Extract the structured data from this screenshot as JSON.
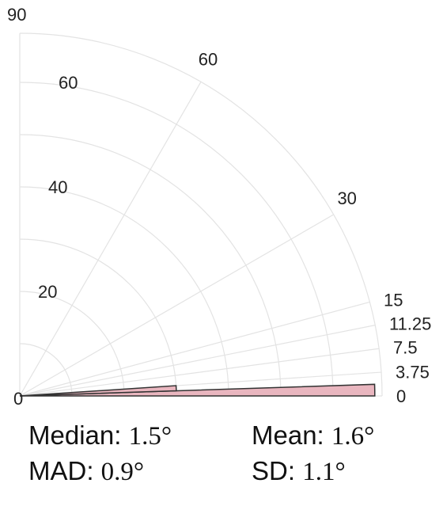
{
  "chart_data": {
    "type": "polar-histogram",
    "theta_range_deg": [
      0,
      90
    ],
    "theta_ticks": [
      {
        "value": 0,
        "label": "0"
      },
      {
        "value": 3.75,
        "label": "3.75"
      },
      {
        "value": 7.5,
        "label": "7.5"
      },
      {
        "value": 11.25,
        "label": "11.25"
      },
      {
        "value": 15,
        "label": "15"
      },
      {
        "value": 30,
        "label": "30"
      },
      {
        "value": 60,
        "label": "60"
      },
      {
        "value": 90,
        "label": "90"
      }
    ],
    "r_range": [
      0,
      70
    ],
    "r_ticks": [
      {
        "value": 0,
        "label": "0"
      },
      {
        "value": 20,
        "label": "20"
      },
      {
        "value": 40,
        "label": "40"
      },
      {
        "value": 60,
        "label": "60"
      }
    ],
    "grid": true,
    "bins": [
      {
        "theta_start": 0,
        "theta_end": 1.875,
        "count": 68
      },
      {
        "theta_start": 1.875,
        "theta_end": 3.75,
        "count": 30
      }
    ],
    "bar_color": "#e9b6bf",
    "bar_edge_color": "#333333"
  },
  "stats": {
    "median_label": "Median: ",
    "median_value": "1.5°",
    "mean_label": "Mean: ",
    "mean_value": "1.6°",
    "mad_label": "MAD: ",
    "mad_value": "0.9°",
    "sd_label": "SD: ",
    "sd_value": "1.1°"
  }
}
